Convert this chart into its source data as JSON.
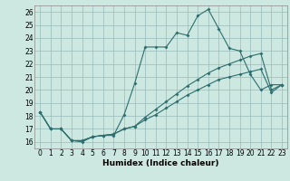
{
  "xlabel": "Humidex (Indice chaleur)",
  "bg_color": "#cce8e0",
  "grid_color": "#99bbbb",
  "line_color": "#2d6e6e",
  "xlim": [
    -0.5,
    23.5
  ],
  "ylim": [
    15.5,
    26.5
  ],
  "yticks": [
    16,
    17,
    18,
    19,
    20,
    21,
    22,
    23,
    24,
    25,
    26
  ],
  "xticks": [
    0,
    1,
    2,
    3,
    4,
    5,
    6,
    7,
    8,
    9,
    10,
    11,
    12,
    13,
    14,
    15,
    16,
    17,
    18,
    19,
    20,
    21,
    22,
    23
  ],
  "series1_x": [
    0,
    1,
    2,
    3,
    4,
    5,
    6,
    7,
    8,
    9,
    10,
    11,
    12,
    13,
    14,
    15,
    16,
    17,
    18,
    19,
    20,
    21,
    22,
    23
  ],
  "series1_y": [
    18.3,
    17.0,
    17.0,
    16.1,
    16.0,
    16.4,
    16.5,
    16.5,
    18.1,
    20.5,
    23.3,
    23.3,
    23.3,
    24.4,
    24.2,
    25.7,
    26.2,
    24.7,
    23.2,
    23.0,
    21.2,
    20.0,
    20.4,
    20.4
  ],
  "series2_x": [
    0,
    1,
    2,
    3,
    4,
    5,
    6,
    7,
    8,
    9,
    10,
    11,
    12,
    13,
    14,
    15,
    16,
    17,
    18,
    19,
    20,
    21,
    22,
    23
  ],
  "series2_y": [
    18.3,
    17.0,
    17.0,
    16.1,
    16.1,
    16.4,
    16.5,
    16.6,
    17.0,
    17.2,
    17.9,
    18.5,
    19.1,
    19.7,
    20.3,
    20.8,
    21.3,
    21.7,
    22.0,
    22.3,
    22.6,
    22.8,
    20.0,
    20.4
  ],
  "series3_x": [
    0,
    1,
    2,
    3,
    4,
    5,
    6,
    7,
    8,
    9,
    10,
    11,
    12,
    13,
    14,
    15,
    16,
    17,
    18,
    19,
    20,
    21,
    22,
    23
  ],
  "series3_y": [
    18.3,
    17.0,
    17.0,
    16.1,
    16.1,
    16.4,
    16.5,
    16.6,
    17.0,
    17.2,
    17.7,
    18.1,
    18.6,
    19.1,
    19.6,
    20.0,
    20.4,
    20.8,
    21.0,
    21.2,
    21.4,
    21.6,
    19.8,
    20.4
  ],
  "markersize": 2.0,
  "linewidth": 0.8,
  "tick_fontsize": 5.5,
  "xlabel_fontsize": 6.5
}
